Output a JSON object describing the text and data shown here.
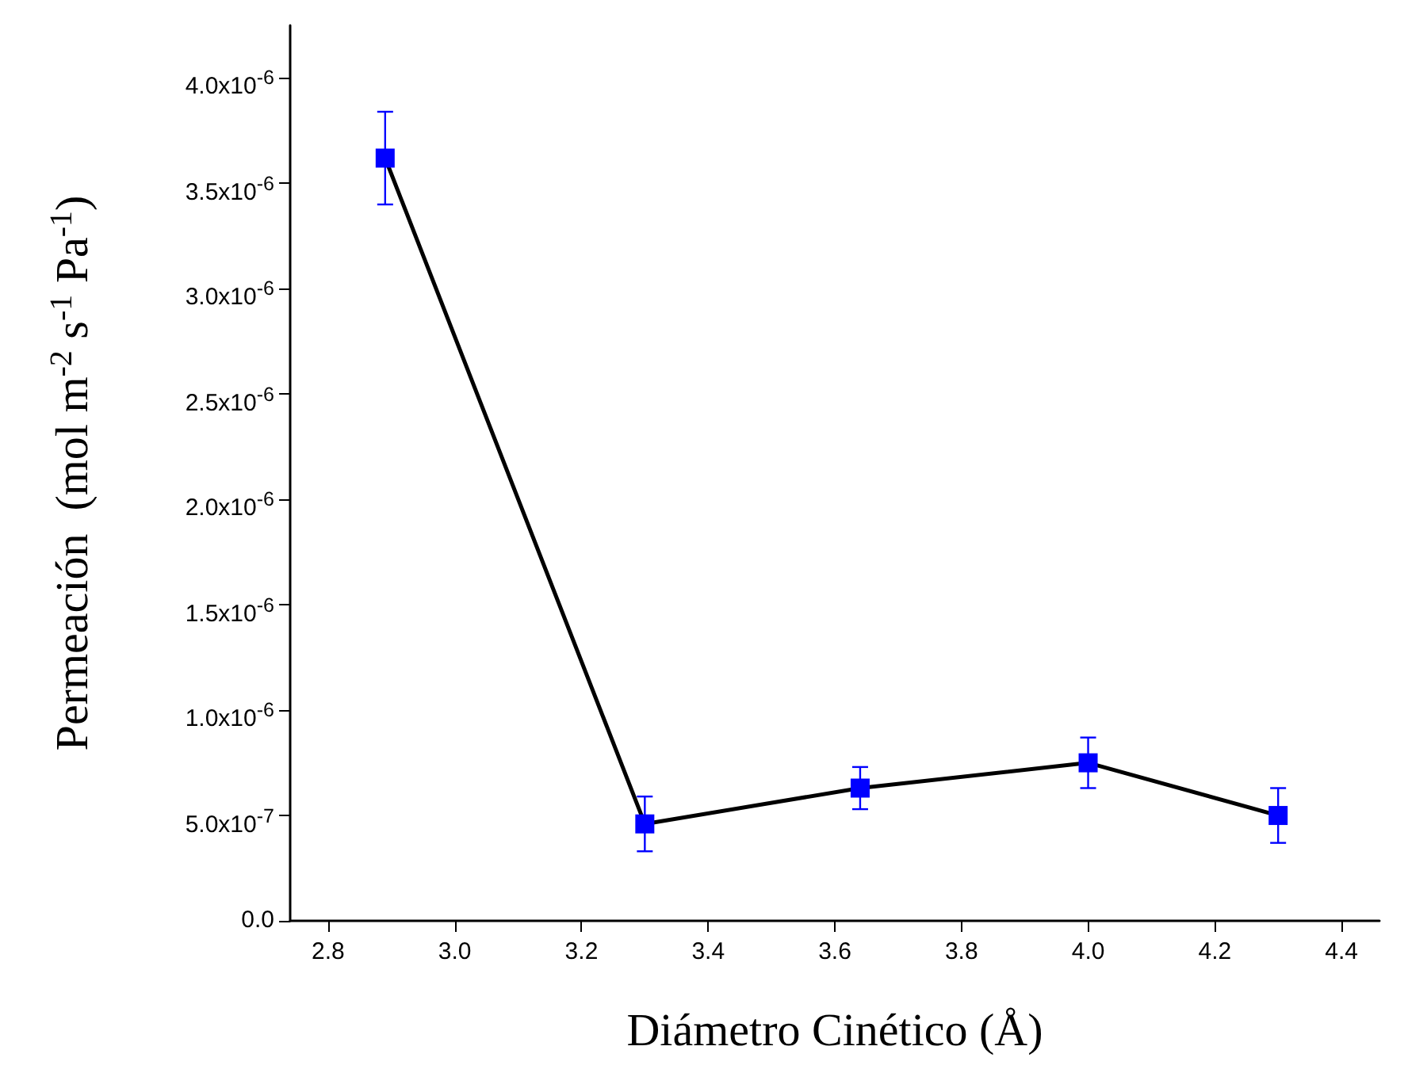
{
  "chart_data": {
    "type": "line",
    "xlabel": "Diámetro Cinético (Å)",
    "ylabel": "Permeación  (mol m$^{-2}$ s$^{-1}$ Pa$^{-1}$)",
    "x": [
      2.89,
      3.3,
      3.64,
      4.0,
      4.3
    ],
    "series": [
      {
        "color": "#0000ff",
        "values": [
          3.62e-06,
          4.6e-07,
          6.3e-07,
          7.5e-07,
          5e-07
        ],
        "errors": [
          2.2e-07,
          1.3e-07,
          1e-07,
          1.2e-07,
          1.3e-07
        ]
      }
    ],
    "xlim": [
      2.74,
      4.46
    ],
    "xticks": [
      2.8,
      {
        "value": 3.0,
        "label": "3.0"
      },
      3.2,
      3.4,
      3.6,
      3.8,
      {
        "value": 4.0,
        "label": "4.0"
      },
      4.2,
      4.4
    ],
    "ylim": [
      0,
      4.25e-06
    ],
    "yticks": [
      {
        "value": 0,
        "label": "0.0"
      },
      {
        "value": 5e-07,
        "label": "5.0x10$^{-7}$"
      },
      {
        "value": 1e-06,
        "label": "1.0x10$^{-6}$"
      },
      {
        "value": 1.5e-06,
        "label": "1.5x10$^{-6}$"
      },
      {
        "value": 2e-06,
        "label": "2.0x10$^{-6}$"
      },
      {
        "value": 2.5e-06,
        "label": "2.5x10$^{-6}$"
      },
      {
        "value": 3e-06,
        "label": "3.0x10$^{-6}$"
      },
      {
        "value": 3.5e-06,
        "label": "3.5x10$^{-6}$"
      },
      {
        "value": 4e-06,
        "label": "4.0x10$^{-6}$"
      }
    ],
    "grid": false,
    "marker": "square",
    "line_style": "solid"
  }
}
